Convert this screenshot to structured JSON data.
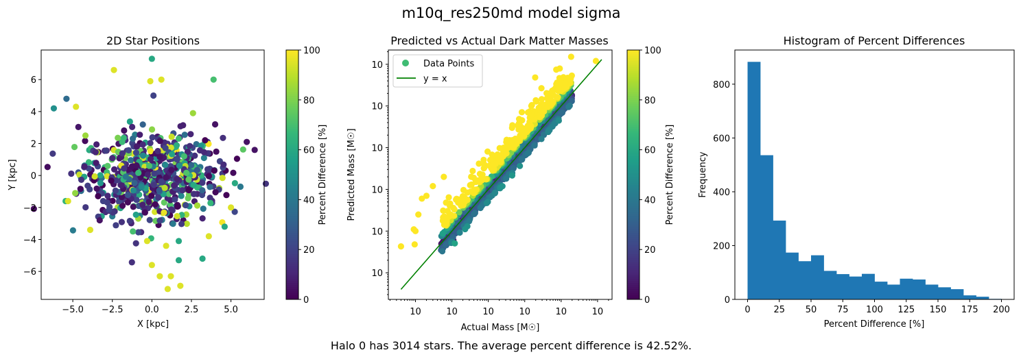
{
  "figure": {
    "suptitle": "m10q_res250md model sigma",
    "footer": "Halo 0 has 3014 stars. The average percent difference is 42.52%."
  },
  "colormap": {
    "name": "viridis",
    "stops": [
      "#440154",
      "#482878",
      "#3e4989",
      "#31688e",
      "#26828e",
      "#1f9e89",
      "#35b779",
      "#6ece58",
      "#b5de2b",
      "#fde725"
    ]
  },
  "chart_data": [
    {
      "type": "scatter",
      "title": "2D Star Positions",
      "xlabel": "X [kpc]",
      "ylabel": "Y [kpc]",
      "xlim": [
        -7.0,
        7.1
      ],
      "ylim": [
        -7.75,
        7.85
      ],
      "xticks": [
        -5.0,
        -2.5,
        0.0,
        2.5,
        5.0
      ],
      "xtick_labels": [
        "−5.0",
        "−2.5",
        "0.0",
        "2.5",
        "5.0"
      ],
      "yticks": [
        -6,
        -4,
        -2,
        0,
        2,
        4,
        6
      ],
      "ytick_labels": [
        "−6",
        "−4",
        "−2",
        "0",
        "2",
        "4",
        "6"
      ],
      "color_by": "Percent Difference [%]",
      "colorbar": {
        "label": "Percent Difference [%]",
        "range": [
          0,
          100
        ],
        "ticks": [
          0,
          20,
          40,
          60,
          80,
          100
        ],
        "tick_labels": [
          "0",
          "20",
          "40",
          "60",
          "80",
          "100"
        ]
      },
      "outlier_points": [
        {
          "x": 0.0,
          "y": 7.3,
          "c": 60
        },
        {
          "x": -2.4,
          "y": 6.6,
          "c": 95
        },
        {
          "x": 0.6,
          "y": 6.0,
          "c": 95
        },
        {
          "x": -0.1,
          "y": 5.9,
          "c": 95
        },
        {
          "x": 3.9,
          "y": 6.0,
          "c": 70
        },
        {
          "x": -6.2,
          "y": 4.2,
          "c": 50
        },
        {
          "x": -5.4,
          "y": 4.8,
          "c": 35
        },
        {
          "x": 0.1,
          "y": 5.0,
          "c": 20
        },
        {
          "x": -4.8,
          "y": 4.3,
          "c": 95
        },
        {
          "x": 4.0,
          "y": 3.2,
          "c": 5
        },
        {
          "x": 2.6,
          "y": 3.9,
          "c": 85
        },
        {
          "x": 6.0,
          "y": 2.1,
          "c": 5
        },
        {
          "x": 6.5,
          "y": 1.6,
          "c": 5
        },
        {
          "x": -5.3,
          "y": -1.6,
          "c": 95
        },
        {
          "x": -3.9,
          "y": -3.4,
          "c": 95
        },
        {
          "x": -3.3,
          "y": -2.8,
          "c": 5
        },
        {
          "x": -1.2,
          "y": -3.5,
          "c": 70
        },
        {
          "x": -0.3,
          "y": -4.1,
          "c": 95
        },
        {
          "x": 0.9,
          "y": -4.4,
          "c": 95
        },
        {
          "x": 1.7,
          "y": -4.1,
          "c": 60
        },
        {
          "x": 3.2,
          "y": -5.2,
          "c": 60
        },
        {
          "x": 0.0,
          "y": -5.6,
          "c": 95
        },
        {
          "x": 1.7,
          "y": -5.3,
          "c": 60
        },
        {
          "x": 0.5,
          "y": -6.3,
          "c": 95
        },
        {
          "x": 1.2,
          "y": -6.3,
          "c": 95
        },
        {
          "x": 1.8,
          "y": -6.9,
          "c": 95
        },
        {
          "x": 1.0,
          "y": -7.1,
          "c": 95
        },
        {
          "x": 3.6,
          "y": -3.8,
          "c": 95
        },
        {
          "x": 4.6,
          "y": -3.2,
          "c": 60
        },
        {
          "x": 5.0,
          "y": -2.0,
          "c": 95
        },
        {
          "x": 5.6,
          "y": -0.7,
          "c": 40
        },
        {
          "x": -4.2,
          "y": 2.5,
          "c": 85
        }
      ],
      "cluster": {
        "center": [
          0.0,
          0.0
        ],
        "sigma": [
          2.2,
          1.35
        ],
        "count": 700,
        "color_mix": "mostly low percent difference with scattered mid/high values"
      }
    },
    {
      "type": "scatter",
      "title": "Predicted vs Actual Dark Matter Masses",
      "xlabel": "Actual Mass [M☉]",
      "ylabel": "Predicted Mass [M☉]",
      "xscale": "log",
      "yscale": "log",
      "xlim": [
        18000,
        25000000000
      ],
      "ylim": [
        23000,
        22000000000
      ],
      "xticks": [
        100000,
        1000000,
        10000000,
        100000000,
        1000000000,
        10000000000
      ],
      "xtick_labels": [
        "10",
        "10",
        "10",
        "10",
        "10",
        "10"
      ],
      "xtick_exponents": [
        "5",
        "6",
        "7",
        "8",
        "9",
        "10"
      ],
      "yticks": [
        100000,
        1000000,
        10000000,
        100000000,
        1000000000,
        10000000000
      ],
      "ytick_labels": [
        "10",
        "10",
        "10",
        "10",
        "10",
        "10"
      ],
      "ytick_exponents": [
        "5",
        "6",
        "7",
        "8",
        "9",
        "10"
      ],
      "legend": {
        "position": "upper-left",
        "entries": [
          "Data Points",
          "y = x"
        ]
      },
      "series": [
        {
          "name": "Data Points",
          "kind": "points",
          "color_by": "Percent Difference [%]"
        },
        {
          "name": "y = x",
          "kind": "line",
          "color": "#008000",
          "x": [
            40000,
            13000000000
          ],
          "y": [
            40000,
            13000000000
          ]
        }
      ],
      "outlier_points": [
        {
          "x": 40000,
          "y": 430000,
          "c": 100
        },
        {
          "x": 90000,
          "y": 1100000,
          "c": 100
        },
        {
          "x": 95000,
          "y": 480000,
          "c": 100
        },
        {
          "x": 100000,
          "y": 1000000,
          "c": 100
        },
        {
          "x": 120000,
          "y": 2500000,
          "c": 100
        },
        {
          "x": 150000,
          "y": 6000000,
          "c": 100
        },
        {
          "x": 200000,
          "y": 7000000,
          "c": 100
        },
        {
          "x": 300000,
          "y": 12000000,
          "c": 100
        },
        {
          "x": 600000,
          "y": 20000000,
          "c": 100
        },
        {
          "x": 1000000,
          "y": 900000,
          "c": 5
        },
        {
          "x": 1100000,
          "y": 600000,
          "c": 5
        },
        {
          "x": 1500000,
          "y": 2500000,
          "c": 55
        },
        {
          "x": 9000000000,
          "y": 12000000000,
          "c": 100
        }
      ],
      "band": {
        "x_range": [
          500000,
          2000000000
        ],
        "slope": 1.0,
        "scatter_dex": 0.3,
        "count": 1400,
        "high_error_side": "above"
      },
      "colorbar": {
        "label": "Percent Difference [%]",
        "range": [
          0,
          100
        ],
        "ticks": [
          0,
          20,
          40,
          60,
          80,
          100
        ],
        "tick_labels": [
          "0",
          "20",
          "40",
          "60",
          "80",
          "100"
        ]
      }
    },
    {
      "type": "bar",
      "title": "Histogram of Percent Differences",
      "xlabel": "Percent Difference [%]",
      "ylabel": "Frequency",
      "bin_edges": [
        0,
        10,
        20,
        30,
        40,
        50,
        60,
        70,
        80,
        90,
        100,
        110,
        120,
        130,
        140,
        150,
        160,
        170,
        180,
        190,
        200
      ],
      "values": [
        883,
        536,
        293,
        174,
        142,
        164,
        106,
        94,
        85,
        95,
        66,
        55,
        77,
        74,
        55,
        45,
        38,
        15,
        10,
        2
      ],
      "bar_color": "#1f77b4",
      "xlim": [
        -10,
        210
      ],
      "ylim": [
        0,
        927
      ],
      "xticks": [
        0,
        25,
        50,
        75,
        100,
        125,
        150,
        175,
        200
      ],
      "xtick_labels": [
        "0",
        "25",
        "50",
        "75",
        "100",
        "125",
        "150",
        "175",
        "200"
      ],
      "yticks": [
        0,
        200,
        400,
        600,
        800
      ],
      "ytick_labels": [
        "0",
        "200",
        "400",
        "600",
        "800"
      ]
    }
  ]
}
